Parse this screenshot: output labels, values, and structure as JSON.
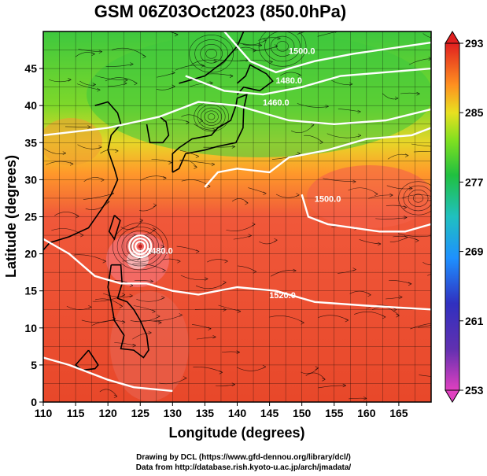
{
  "title": "GSM 06Z03Oct2023 (850.0hPa)",
  "x_axis": {
    "label": "Longitude (degrees)",
    "min": 110,
    "max": 170,
    "ticks": [
      110,
      115,
      120,
      125,
      130,
      135,
      140,
      145,
      150,
      155,
      160,
      165
    ]
  },
  "y_axis": {
    "label": "Latitude (degrees)",
    "min": 0,
    "max": 50,
    "ticks": [
      0,
      5,
      10,
      15,
      20,
      25,
      30,
      35,
      40,
      45
    ]
  },
  "colorbar": {
    "min": 253,
    "max": 293,
    "tick_labels": [
      293,
      285,
      277,
      269,
      261,
      253
    ],
    "colors": [
      "#e040c0",
      "#3030c0",
      "#1e90ff",
      "#20c0c0",
      "#20c040",
      "#80e020",
      "#e8e020",
      "#ff9020",
      "#ff5020",
      "#e02020"
    ]
  },
  "contour_labels": [
    {
      "text": "1500.0",
      "lon": 150,
      "lat": 47
    },
    {
      "text": "1480.0",
      "lon": 148,
      "lat": 43
    },
    {
      "text": "1460.0",
      "lon": 146,
      "lat": 40
    },
    {
      "text": "1500.0",
      "lon": 154,
      "lat": 27
    },
    {
      "text": "1520.0",
      "lon": 147,
      "lat": 14
    },
    {
      "text": "1480.0",
      "lon": 128,
      "lat": 20
    }
  ],
  "credits": {
    "line1": "Drawing by DCL (https://www.gfd-dennou.org/library/dcl/)",
    "line2": "Data from http://database.rish.kyoto-u.ac.jp/arch/jmadata/"
  }
}
